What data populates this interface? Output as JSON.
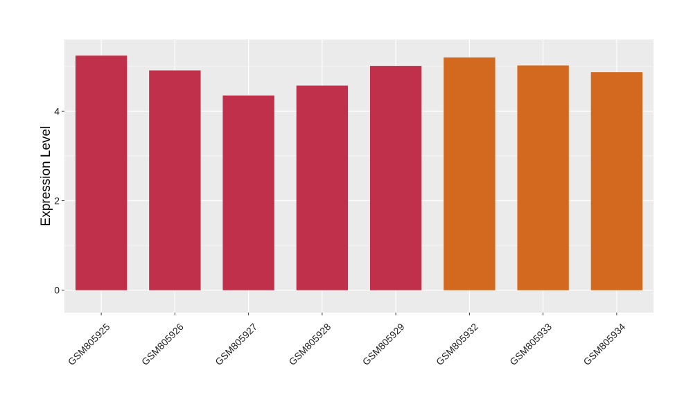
{
  "chart_data": {
    "type": "bar",
    "title": "",
    "xlabel": "",
    "ylabel": "Expression Level",
    "categories": [
      "GSM805925",
      "GSM805926",
      "GSM805927",
      "GSM805928",
      "GSM805929",
      "GSM805932",
      "GSM805933",
      "GSM805934"
    ],
    "values": [
      5.24,
      4.91,
      4.35,
      4.57,
      5.01,
      5.2,
      5.02,
      4.87
    ],
    "bar_colors": [
      "#c0304a",
      "#c0304a",
      "#c0304a",
      "#c0304a",
      "#c0304a",
      "#d2691e",
      "#d2691e",
      "#d2691e"
    ],
    "ylim": [
      -0.5,
      5.6
    ],
    "y_ticks": [
      0,
      2,
      4
    ],
    "y_tick_labels": [
      "0",
      "2",
      "4"
    ],
    "grid": true,
    "panel_background": "#ebebeb",
    "grid_color": "#ffffff",
    "legend": "none"
  }
}
